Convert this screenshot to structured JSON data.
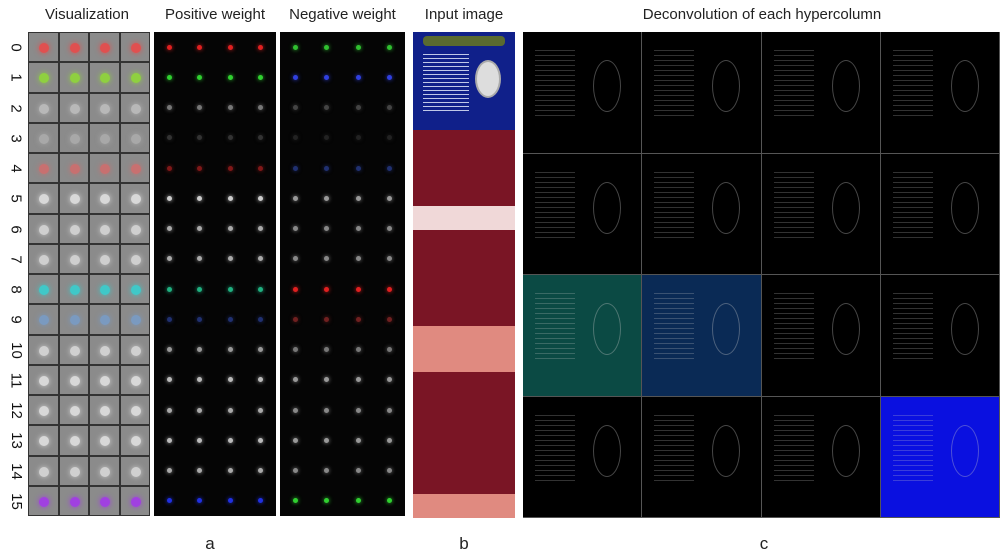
{
  "headers": {
    "visualization": "Visualization",
    "positive": "Positive weight",
    "negative": "Negative weight",
    "input": "Input image",
    "deconv": "Deconvolution of each hypercolumn"
  },
  "row_labels": [
    "0",
    "1",
    "2",
    "3",
    "4",
    "5",
    "6",
    "7",
    "8",
    "9",
    "10",
    "11",
    "12",
    "13",
    "14",
    "15"
  ],
  "subfigure_labels": {
    "a": "a",
    "b": "b",
    "c": "c"
  },
  "colors": {
    "vis": [
      "#e05050",
      "#8fd040",
      "#b8b8b8",
      "#a8a8a8",
      "#c87070",
      "#d8d8d8",
      "#cfcfcf",
      "#cfcfcf",
      "#40c8c8",
      "#7a9ac0",
      "#d0d0d0",
      "#d8d8d8",
      "#d8d8d8",
      "#d8d8d8",
      "#d0d0d0",
      "#a040e0"
    ],
    "pos": [
      "#e02020",
      "#30d030",
      "#777777",
      "#333333",
      "#801818",
      "#cccccc",
      "#aaaaaa",
      "#aaaaaa",
      "#20b080",
      "#203070",
      "#999999",
      "#bbbbbb",
      "#aaaaaa",
      "#bbbbbb",
      "#aaaaaa",
      "#2030e0"
    ],
    "neg": [
      "#30c030",
      "#3040e0",
      "#444444",
      "#222222",
      "#203070",
      "#999999",
      "#888888",
      "#888888",
      "#e02020",
      "#702020",
      "#777777",
      "#999999",
      "#888888",
      "#999999",
      "#888888",
      "#30d030"
    ],
    "deconv_bg": [
      "#000000",
      "#000000",
      "#000000",
      "#000000",
      "#000000",
      "#000000",
      "#000000",
      "#000000",
      "#0b4a44",
      "#0a2a55",
      "#000000",
      "#000000",
      "#000000",
      "#000000",
      "#000000",
      "#0a10e0"
    ]
  }
}
